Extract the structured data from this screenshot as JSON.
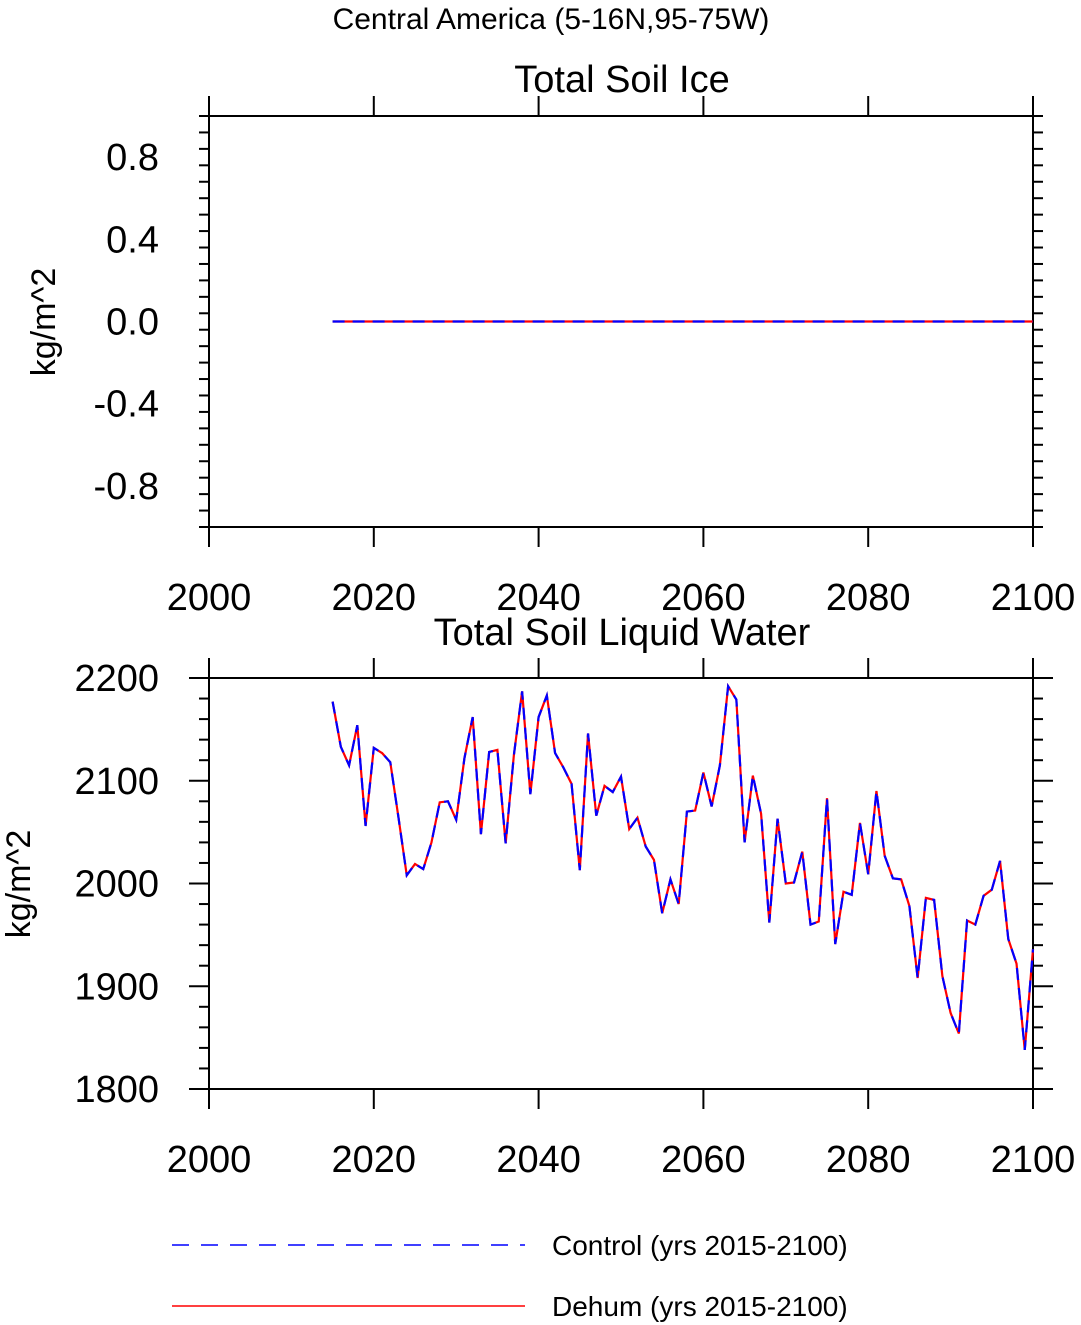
{
  "suptitle": "Central America (5-16N,95-75W)",
  "legend": {
    "placement": "bottom",
    "entries": [
      {
        "label": "Control (yrs 2015-2100)",
        "color": "#0000ff",
        "dash": "dashed"
      },
      {
        "label": "Dehum (yrs 2015-2100)",
        "color": "#ff0000",
        "dash": "solid"
      }
    ]
  },
  "chart_data": [
    {
      "type": "line",
      "title": "Total Soil Ice",
      "xlabel": "",
      "ylabel": "kg/m^2",
      "xlim": [
        2000,
        2100
      ],
      "ylim": [
        -1.0,
        1.0
      ],
      "xticks": [
        2000,
        2020,
        2040,
        2060,
        2080,
        2100
      ],
      "xtick_labels": [
        "2000",
        "2020",
        "2040",
        "2060",
        "2080",
        "2100"
      ],
      "yticks": [
        -0.8,
        -0.4,
        0.0,
        0.4,
        0.8
      ],
      "ytick_labels": [
        "-0.8",
        "-0.4",
        "0.0",
        "0.4",
        "0.8"
      ],
      "grid": false,
      "x": [
        2015,
        2100
      ],
      "series": [
        {
          "name": "Control (yrs 2015-2100)",
          "color": "#0000ff",
          "values": [
            0,
            0
          ]
        },
        {
          "name": "Dehum (yrs 2015-2100)",
          "color": "#ff0000",
          "values": [
            0,
            0
          ]
        }
      ]
    },
    {
      "type": "line",
      "title": "Total Soil Liquid Water",
      "xlabel": "",
      "ylabel": "kg/m^2",
      "xlim": [
        2000,
        2100
      ],
      "ylim": [
        1800,
        2200
      ],
      "xticks": [
        2000,
        2020,
        2040,
        2060,
        2080,
        2100
      ],
      "xtick_labels": [
        "2000",
        "2020",
        "2040",
        "2060",
        "2080",
        "2100"
      ],
      "yticks": [
        1800,
        1900,
        2000,
        2100,
        2200
      ],
      "ytick_labels": [
        "1800",
        "1900",
        "2000",
        "2100",
        "2200"
      ],
      "grid": false,
      "x": [
        2015,
        2016,
        2017,
        2018,
        2019,
        2020,
        2021,
        2022,
        2023,
        2024,
        2025,
        2026,
        2027,
        2028,
        2029,
        2030,
        2031,
        2032,
        2033,
        2034,
        2035,
        2036,
        2037,
        2038,
        2039,
        2040,
        2041,
        2042,
        2043,
        2044,
        2045,
        2046,
        2047,
        2048,
        2049,
        2050,
        2051,
        2052,
        2053,
        2054,
        2055,
        2056,
        2057,
        2058,
        2059,
        2060,
        2061,
        2062,
        2063,
        2064,
        2065,
        2066,
        2067,
        2068,
        2069,
        2070,
        2071,
        2072,
        2073,
        2074,
        2075,
        2076,
        2077,
        2078,
        2079,
        2080,
        2081,
        2082,
        2083,
        2084,
        2085,
        2086,
        2087,
        2088,
        2089,
        2090,
        2091,
        2092,
        2093,
        2094,
        2095,
        2096,
        2097,
        2098,
        2099,
        2100
      ],
      "series": [
        {
          "name": "Control (yrs 2015-2100)",
          "color": "#0000ff",
          "values": [
            2177,
            2133,
            2115,
            2154,
            2056,
            2132,
            2127,
            2118,
            2064,
            2008,
            2019,
            2014,
            2040,
            2079,
            2080,
            2062,
            2122,
            2162,
            2048,
            2128,
            2130,
            2039,
            2125,
            2187,
            2087,
            2162,
            2183,
            2127,
            2113,
            2097,
            2013,
            2146,
            2066,
            2095,
            2089,
            2104,
            2053,
            2064,
            2036,
            2023,
            1971,
            2004,
            1980,
            2070,
            2071,
            2108,
            2075,
            2115,
            2192,
            2179,
            2040,
            2105,
            2068,
            1962,
            2063,
            2000,
            2001,
            2031,
            1960,
            1963,
            2083,
            1941,
            1992,
            1989,
            2059,
            2009,
            2090,
            2027,
            2005,
            2004,
            1978,
            1908,
            1986,
            1984,
            1910,
            1874,
            1854,
            1964,
            1960,
            1988,
            1994,
            2022,
            1946,
            1922,
            1838,
            1936
          ]
        },
        {
          "name": "Dehum (yrs 2015-2100)",
          "color": "#ff0000",
          "values": [
            2177,
            2133,
            2115,
            2154,
            2056,
            2132,
            2127,
            2118,
            2064,
            2008,
            2019,
            2014,
            2040,
            2079,
            2080,
            2062,
            2122,
            2162,
            2048,
            2128,
            2130,
            2039,
            2125,
            2187,
            2087,
            2162,
            2183,
            2127,
            2113,
            2097,
            2013,
            2146,
            2066,
            2095,
            2089,
            2104,
            2053,
            2064,
            2036,
            2023,
            1971,
            2004,
            1980,
            2070,
            2071,
            2108,
            2075,
            2115,
            2192,
            2179,
            2040,
            2105,
            2068,
            1962,
            2063,
            2000,
            2001,
            2031,
            1960,
            1963,
            2083,
            1941,
            1992,
            1989,
            2059,
            2009,
            2090,
            2027,
            2005,
            2004,
            1978,
            1908,
            1986,
            1984,
            1910,
            1874,
            1854,
            1964,
            1960,
            1988,
            1994,
            2022,
            1946,
            1922,
            1838,
            1936
          ]
        }
      ]
    }
  ]
}
